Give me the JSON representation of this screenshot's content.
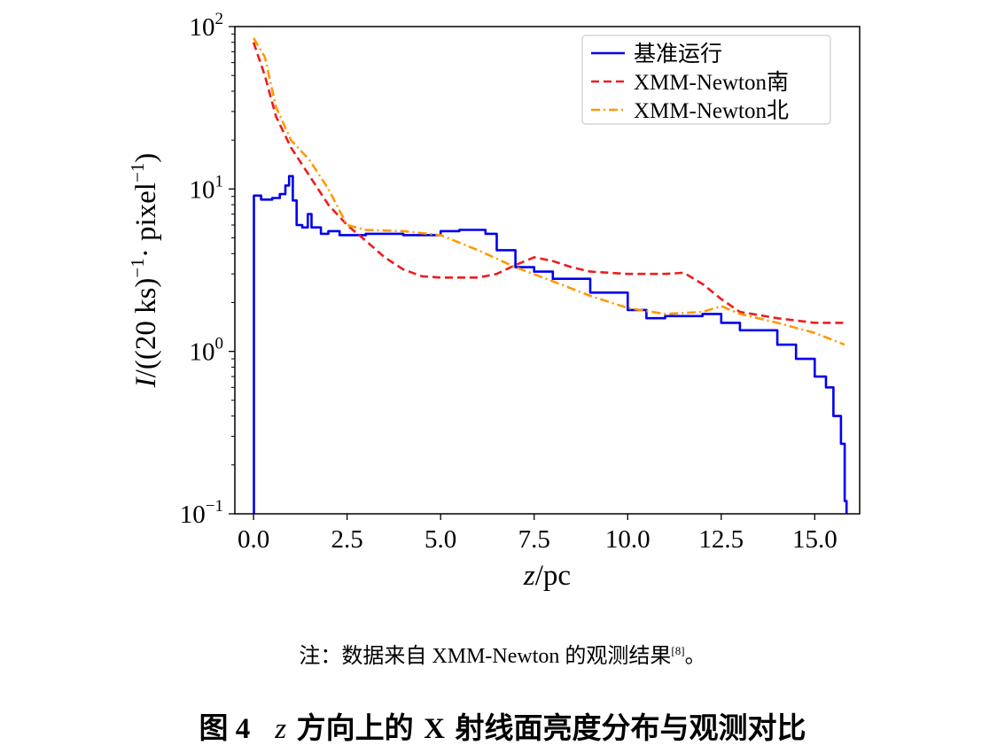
{
  "chart_data": {
    "type": "line",
    "xlabel_var": "z",
    "xlabel_unit": "/pc",
    "ylabel_prefix": "I",
    "ylabel_body": "/((20 ks)",
    "ylabel_sup1": "−1",
    "ylabel_mid": "· pixel",
    "ylabel_sup2": "−1",
    "ylabel_end": ")",
    "xlim": [
      -0.5,
      16.2
    ],
    "ylim_log10": [
      -1,
      2
    ],
    "yscale": "log",
    "x_ticks": [
      0,
      2.5,
      5,
      7.5,
      10,
      12.5,
      15
    ],
    "x_tick_labels": [
      "0.0",
      "2.5",
      "5.0",
      "7.5",
      "10.0",
      "12.5",
      "15.0"
    ],
    "y_ticks": [
      {
        "exp": 2,
        "base": "10",
        "sup": "2"
      },
      {
        "exp": 1,
        "base": "10",
        "sup": "1"
      },
      {
        "exp": 0,
        "base": "10",
        "sup": "0"
      },
      {
        "exp": -1,
        "base": "10",
        "sup": "−1"
      }
    ],
    "legend_position": "top-right",
    "series": [
      {
        "name": "基准运行",
        "color": "#0000ee",
        "style": "solid",
        "step": true,
        "points": [
          [
            0.0,
            0.1
          ],
          [
            0.01,
            9.1
          ],
          [
            0.2,
            8.6
          ],
          [
            0.5,
            8.8
          ],
          [
            0.7,
            9.3
          ],
          [
            0.85,
            10.5
          ],
          [
            0.95,
            12.0
          ],
          [
            1.05,
            8.5
          ],
          [
            1.15,
            6.0
          ],
          [
            1.3,
            5.8
          ],
          [
            1.45,
            7.0
          ],
          [
            1.55,
            5.8
          ],
          [
            1.8,
            5.3
          ],
          [
            2.0,
            5.5
          ],
          [
            2.3,
            5.2
          ],
          [
            3.0,
            5.3
          ],
          [
            4.0,
            5.2
          ],
          [
            5.0,
            5.5
          ],
          [
            5.5,
            5.6
          ],
          [
            6.2,
            5.3
          ],
          [
            6.5,
            4.2
          ],
          [
            7.0,
            3.3
          ],
          [
            7.5,
            3.1
          ],
          [
            8.0,
            2.8
          ],
          [
            9.0,
            2.3
          ],
          [
            10.0,
            1.8
          ],
          [
            10.5,
            1.6
          ],
          [
            11.0,
            1.65
          ],
          [
            12.0,
            1.7
          ],
          [
            12.5,
            1.5
          ],
          [
            13.0,
            1.35
          ],
          [
            14.0,
            1.1
          ],
          [
            14.5,
            0.9
          ],
          [
            15.0,
            0.7
          ],
          [
            15.3,
            0.6
          ],
          [
            15.5,
            0.4
          ],
          [
            15.7,
            0.27
          ],
          [
            15.8,
            0.12
          ],
          [
            15.85,
            0.1
          ]
        ]
      },
      {
        "name": "XMM-Newton南",
        "color": "#ee1c1c",
        "style": "dashed",
        "step": false,
        "points": [
          [
            0.0,
            80
          ],
          [
            0.3,
            50
          ],
          [
            0.6,
            28
          ],
          [
            1.0,
            18
          ],
          [
            1.5,
            12
          ],
          [
            2.0,
            8.0
          ],
          [
            2.5,
            6.0
          ],
          [
            3.0,
            4.8
          ],
          [
            3.5,
            3.8
          ],
          [
            4.0,
            3.2
          ],
          [
            4.5,
            2.9
          ],
          [
            5.0,
            2.85
          ],
          [
            6.0,
            2.85
          ],
          [
            6.5,
            3.0
          ],
          [
            7.0,
            3.4
          ],
          [
            7.5,
            3.8
          ],
          [
            8.0,
            3.6
          ],
          [
            8.5,
            3.3
          ],
          [
            9.0,
            3.1
          ],
          [
            10.0,
            3.0
          ],
          [
            11.0,
            3.0
          ],
          [
            11.5,
            3.05
          ],
          [
            12.0,
            2.6
          ],
          [
            12.5,
            2.1
          ],
          [
            13.0,
            1.75
          ],
          [
            14.0,
            1.6
          ],
          [
            15.0,
            1.5
          ],
          [
            15.8,
            1.5
          ]
        ]
      },
      {
        "name": "XMM-Newton北",
        "color": "#ff9900",
        "style": "dashdot",
        "step": false,
        "points": [
          [
            0.0,
            85
          ],
          [
            0.3,
            65
          ],
          [
            0.6,
            32
          ],
          [
            1.0,
            20
          ],
          [
            1.5,
            15
          ],
          [
            2.0,
            10
          ],
          [
            2.5,
            6.0
          ],
          [
            3.0,
            5.6
          ],
          [
            4.0,
            5.5
          ],
          [
            5.0,
            5.2
          ],
          [
            6.0,
            4.2
          ],
          [
            7.0,
            3.3
          ],
          [
            8.0,
            2.7
          ],
          [
            9.0,
            2.2
          ],
          [
            10.0,
            1.85
          ],
          [
            11.0,
            1.7
          ],
          [
            12.0,
            1.75
          ],
          [
            12.5,
            1.9
          ],
          [
            13.0,
            1.7
          ],
          [
            14.0,
            1.5
          ],
          [
            15.0,
            1.3
          ],
          [
            15.8,
            1.1
          ]
        ]
      }
    ]
  },
  "note": {
    "prefix": "注：数据来自 XMM-Newton 的观测结果",
    "ref": "[8]",
    "suffix": "。"
  },
  "caption": {
    "number": "图 4",
    "var": "z",
    "text1": " 方向上的 ",
    "x": "X",
    "text2": " 射线面亮度分布与观测对比"
  }
}
